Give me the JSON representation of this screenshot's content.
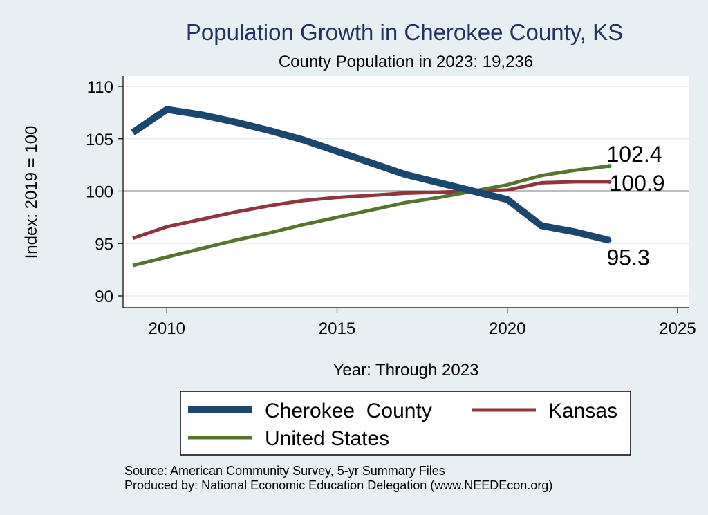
{
  "chart_data": {
    "type": "line",
    "title": "Population Growth in Cherokee County, KS",
    "subtitle": "County Population in 2023: 19,236",
    "xlabel": "Year: Through 2023",
    "ylabel": "Index: 2019 = 100",
    "xlim": [
      2009,
      2025
    ],
    "ylim": [
      89,
      110
    ],
    "x_ticks": [
      "2010",
      "2015",
      "2020",
      "2025"
    ],
    "y_ticks": [
      "90",
      "95",
      "100",
      "105",
      "110"
    ],
    "grid": true,
    "reference_line": 100,
    "x": [
      2009,
      2010,
      2011,
      2012,
      2013,
      2014,
      2015,
      2016,
      2017,
      2018,
      2019,
      2020,
      2021,
      2022,
      2023
    ],
    "series": [
      {
        "name": "Cherokee  County",
        "color": "#1a476f",
        "values": [
          105.6,
          107.8,
          107.3,
          106.6,
          105.8,
          104.9,
          103.8,
          102.7,
          101.6,
          100.8,
          100.0,
          99.2,
          96.7,
          96.1,
          95.3
        ],
        "end_label": "95.3"
      },
      {
        "name": "Kansas",
        "color": "#90353b",
        "values": [
          95.5,
          96.6,
          97.3,
          98.0,
          98.6,
          99.1,
          99.4,
          99.6,
          99.8,
          99.9,
          100.0,
          100.1,
          100.8,
          100.9,
          100.9
        ],
        "end_label": "100.9"
      },
      {
        "name": "United States",
        "color": "#55752f",
        "values": [
          92.9,
          93.7,
          94.5,
          95.3,
          96.0,
          96.8,
          97.5,
          98.2,
          98.9,
          99.4,
          100.0,
          100.6,
          101.5,
          102.0,
          102.4
        ],
        "end_label": "102.4"
      }
    ],
    "legend_position": "bottom",
    "notes": [
      "Source: American Community Survey, 5-yr Summary Files",
      "Produced by: National Economic Education Delegation (www.NEEDEcon.org)"
    ]
  }
}
